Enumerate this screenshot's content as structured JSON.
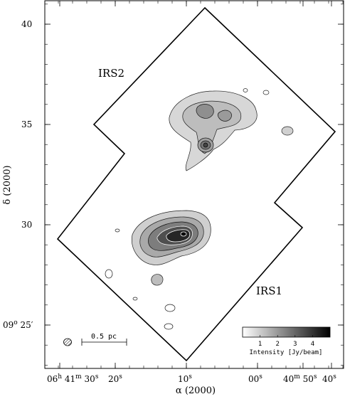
{
  "figure": {
    "x_axis_title": "α (2000)",
    "y_axis_title": "δ (2000)",
    "ra_ticks": [
      {
        "main": "06",
        "sup": "h",
        "main2": " 41",
        "sup2": "m",
        "main3": " 30",
        "sup3": "s"
      },
      {
        "main": "20",
        "sup": "s"
      },
      {
        "main": "10",
        "sup": "s"
      },
      {
        "main": "00",
        "sup": "s"
      },
      {
        "main": "40",
        "sup": "m",
        "main2": " 50",
        "sup2": "s"
      },
      {
        "main": "40",
        "sup": "s"
      }
    ],
    "dec_ticks": [
      {
        "text": "40"
      },
      {
        "text": "35"
      },
      {
        "text": "30"
      },
      {
        "text": "09",
        "sup": "o",
        "text2": " 25",
        "prime": "′"
      }
    ],
    "labels": {
      "irs2": "IRS2",
      "irs1": "IRS1"
    },
    "scalebar": {
      "label": "0.5 pc"
    },
    "colorbar": {
      "ticks": [
        "1",
        "2",
        "3",
        "4"
      ],
      "label": "Intensity [Jy/beam]",
      "min": 0,
      "max": 5
    }
  }
}
